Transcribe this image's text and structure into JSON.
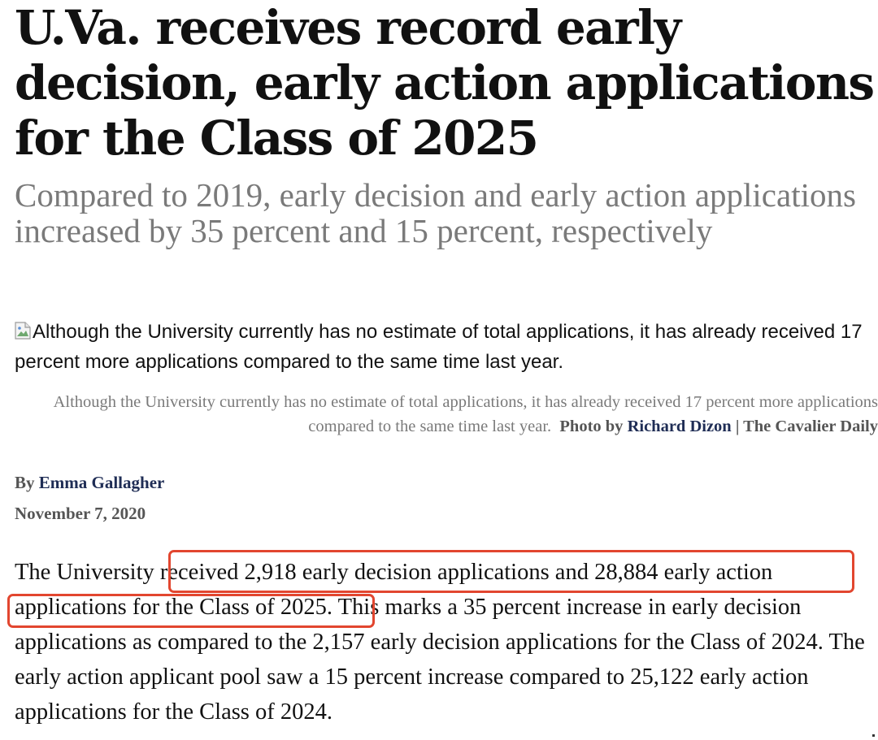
{
  "article": {
    "headline": "U.Va. receives record early decision, early action applications for the Class of 2025",
    "subheadline": "Compared to 2019, early decision and early action applications increased by 35 percent and 15 percent, respectively",
    "image_alt": "Although the University currently has no estimate of total applications, it has already received 17 percent more applications compared to the same time last year.",
    "image_icon": "broken-image-icon",
    "caption": {
      "text": "Although the University currently has no estimate of total applications, it has already received 17 percent more applications compared to the same time last year.",
      "photo_by_label": "Photo by",
      "photographer": "Richard Dizon",
      "separator": "|",
      "publication": "The Cavalier Daily"
    },
    "byline": {
      "by_label": "By",
      "author": "Emma Gallagher"
    },
    "date": "November 7, 2020",
    "body": {
      "lead": "The University",
      "highlighted_line1": "received 2,918 early decision applications and 28,884 early action",
      "highlighted_line2": "applications for the Class of 2025.",
      "rest": "This marks a 35 percent increase in early decision applications as compared to the 2,157 early decision applications for the Class of 2024. The early action applicant pool saw a 15 percent increase compared to 25,122 early action applications for the Class of 2024."
    }
  },
  "annotation": {
    "highlight_color": "#e2462f"
  }
}
